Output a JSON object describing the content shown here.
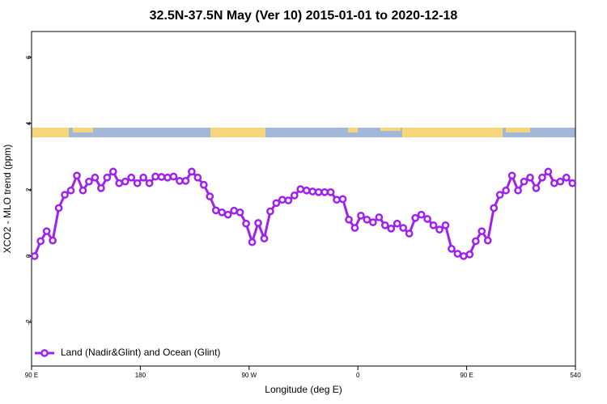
{
  "chart_data": {
    "type": "line",
    "title": "32.5N-37.5N May (Ver 10)   2015-01-01 to 2020-12-18",
    "x_label": "Longitude (deg E)",
    "y_label": "XCO2 - MLO trend (ppm)",
    "x": [
      92.5,
      97.5,
      102.5,
      107.5,
      112.5,
      117.5,
      122.5,
      127.5,
      132.5,
      137.5,
      142.5,
      147.5,
      152.5,
      157.5,
      162.5,
      167.5,
      172.5,
      177.5,
      182.5,
      187.5,
      192.5,
      197.5,
      202.5,
      207.5,
      212.5,
      217.5,
      222.5,
      227.5,
      232.5,
      237.5,
      242.5,
      247.5,
      252.5,
      257.5,
      262.5,
      267.5,
      272.5,
      277.5,
      282.5,
      287.5,
      292.5,
      297.5,
      302.5,
      307.5,
      312.5,
      317.5,
      322.5,
      327.5,
      332.5,
      337.5,
      342.5,
      347.5,
      352.5,
      357.5,
      362.5,
      367.5,
      372.5,
      377.5,
      382.5,
      387.5,
      392.5,
      397.5,
      402.5,
      407.5,
      412.5,
      417.5,
      422.5,
      427.5,
      432.5,
      437.5,
      442.5,
      447.5,
      452.5,
      457.5,
      462.5,
      467.5,
      472.5,
      477.5,
      482.5,
      487.5,
      492.5,
      497.5,
      502.5,
      507.5,
      512.5,
      517.5,
      522.5,
      527.5,
      532.5,
      537.5
    ],
    "series": [
      {
        "name": "Land (Nadir&Glint) and Ocean (Glint)",
        "color": "#a020f0",
        "values": [
          0.0,
          0.45,
          0.75,
          0.47,
          1.45,
          1.85,
          1.98,
          2.43,
          1.98,
          2.25,
          2.37,
          2.05,
          2.37,
          2.55,
          2.2,
          2.25,
          2.37,
          2.2,
          2.37,
          2.2,
          2.4,
          2.39,
          2.37,
          2.4,
          2.27,
          2.27,
          2.55,
          2.37,
          2.15,
          1.8,
          1.38,
          1.32,
          1.25,
          1.37,
          1.32,
          0.98,
          0.42,
          1.0,
          0.53,
          1.35,
          1.6,
          1.7,
          1.68,
          1.83,
          2.02,
          1.98,
          1.95,
          1.93,
          1.93,
          1.93,
          1.7,
          1.72,
          1.1,
          0.85,
          1.22,
          1.1,
          1.02,
          1.17,
          0.93,
          0.83,
          0.98,
          0.85,
          0.68,
          1.15,
          1.25,
          1.12,
          0.93,
          0.8,
          0.93,
          0.22,
          0.07,
          0.0,
          0.05,
          0.45,
          0.75,
          0.47,
          1.45,
          1.85,
          1.98,
          2.43,
          1.98,
          2.25,
          2.37,
          2.05,
          2.37,
          2.55,
          2.2,
          2.25,
          2.37,
          2.2
        ]
      }
    ],
    "xlim": [
      90,
      540
    ],
    "xticks": [
      {
        "value": 90,
        "label": "90 E"
      },
      180,
      {
        "value": 270,
        "label": "90 W"
      },
      {
        "value": 360,
        "label": "0"
      },
      {
        "value": 450,
        "label": "90 E"
      },
      540
    ],
    "ylim": [
      -3.32,
      6.78
    ],
    "yticks": [
      -2,
      0,
      2,
      4,
      6
    ],
    "legend": "bottom-left"
  }
}
